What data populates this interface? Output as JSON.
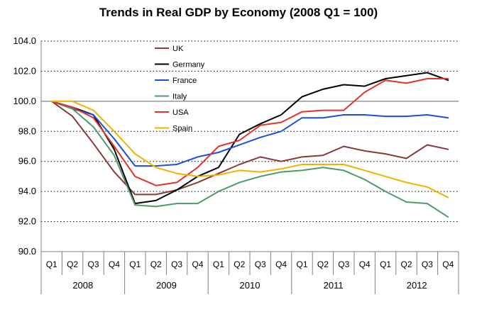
{
  "chart_data": {
    "type": "line",
    "title": "Trends in Real GDP by Economy (2008 Q1 = 100)",
    "xlabel": "",
    "ylabel": "",
    "ylim": [
      90,
      104
    ],
    "yticks": [
      "90.0",
      "92.0",
      "94.0",
      "96.0",
      "98.0",
      "100.0",
      "102.0",
      "104.0"
    ],
    "quarters": [
      "Q1",
      "Q2",
      "Q3",
      "Q4"
    ],
    "years": [
      "2008",
      "2009",
      "2010",
      "2011",
      "2012"
    ],
    "x": [
      "2008 Q1",
      "2008 Q2",
      "2008 Q3",
      "2008 Q4",
      "2009 Q1",
      "2009 Q2",
      "2009 Q3",
      "2009 Q4",
      "2010 Q1",
      "2010 Q2",
      "2010 Q3",
      "2010 Q4",
      "2011 Q1",
      "2011 Q2",
      "2011 Q3",
      "2011 Q4",
      "2012 Q1",
      "2012 Q2",
      "2012 Q3",
      "2012 Q4"
    ],
    "grid": "horizontal dotted",
    "reference_line": 100,
    "legend_position": "upper-left inside plot",
    "series": [
      {
        "name": "UK",
        "color": "#8B3A3A",
        "values": [
          100.0,
          99.0,
          97.2,
          95.3,
          93.8,
          93.8,
          94.1,
          94.6,
          95.2,
          95.8,
          96.3,
          96.0,
          96.3,
          96.4,
          97.0,
          96.7,
          96.5,
          96.2,
          97.1,
          96.8
        ]
      },
      {
        "name": "Germany",
        "color": "#000000",
        "values": [
          100.0,
          99.6,
          99.1,
          96.8,
          93.2,
          93.4,
          94.1,
          95.0,
          95.6,
          97.8,
          98.5,
          99.1,
          100.3,
          100.8,
          101.1,
          101.0,
          101.5,
          101.7,
          101.9,
          101.4
        ]
      },
      {
        "name": "France",
        "color": "#1F4FD8",
        "values": [
          100.0,
          99.5,
          99.1,
          97.5,
          95.7,
          95.7,
          95.8,
          96.3,
          96.6,
          97.1,
          97.6,
          98.0,
          98.9,
          98.9,
          99.1,
          99.1,
          99.0,
          99.0,
          99.1,
          98.9
        ]
      },
      {
        "name": "Italy",
        "color": "#4E9A6B",
        "values": [
          100.0,
          99.5,
          98.3,
          96.4,
          93.1,
          93.0,
          93.2,
          93.2,
          94.0,
          94.6,
          95.0,
          95.3,
          95.4,
          95.6,
          95.4,
          94.8,
          94.0,
          93.3,
          93.2,
          92.3
        ]
      },
      {
        "name": "USA",
        "color": "#E0342C",
        "values": [
          100.0,
          99.6,
          98.9,
          97.0,
          95.0,
          94.4,
          94.6,
          95.6,
          97.0,
          97.4,
          98.4,
          98.6,
          99.3,
          99.4,
          99.4,
          100.6,
          101.4,
          101.2,
          101.5,
          101.5
        ]
      },
      {
        "name": "Spain",
        "color": "#F2B200",
        "values": [
          100.0,
          100.0,
          99.4,
          98.0,
          96.5,
          95.6,
          95.2,
          95.0,
          95.1,
          95.4,
          95.3,
          95.5,
          95.8,
          95.8,
          95.8,
          95.4,
          95.0,
          94.6,
          94.3,
          93.6
        ]
      }
    ]
  }
}
